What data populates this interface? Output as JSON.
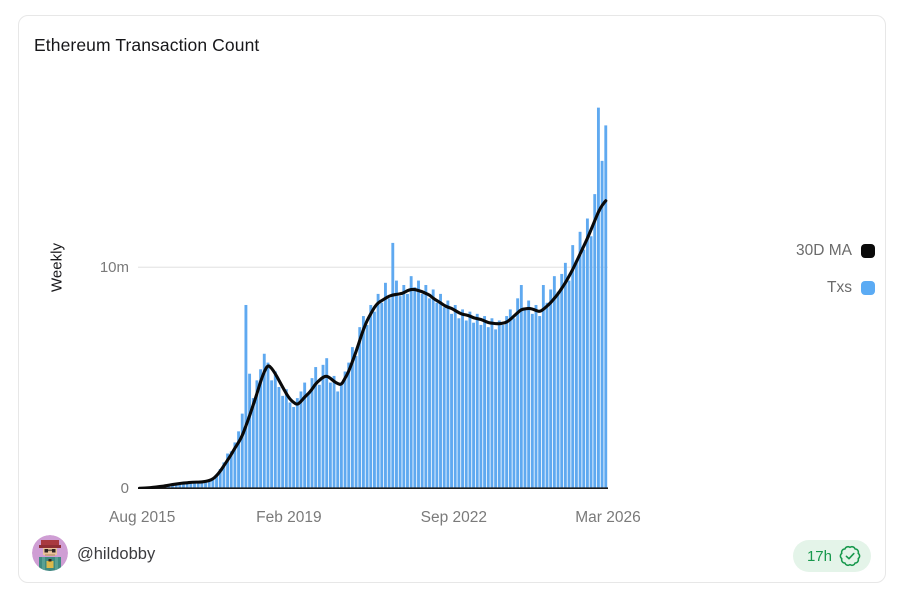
{
  "card": {
    "title": "Ethereum Transaction Count"
  },
  "legend": [
    {
      "label": "30D MA",
      "color": "#0a0a0a"
    },
    {
      "label": "Txs",
      "color": "#5babf4"
    }
  ],
  "footer": {
    "author_handle": "@hildobby",
    "age_badge": "17h",
    "badge_color": "#17984c",
    "badge_bg": "#e4f4e9"
  },
  "chart_data": {
    "type": "bar",
    "title": "Ethereum Transaction Count",
    "subtitle": "",
    "xlabel": "",
    "ylabel": "Weekly",
    "x_range": "Aug 2015 to Mar 2026, one value per month (weekly bars in source, values in millions of transactions)",
    "xticks": [
      "Aug 2015",
      "Feb 2019",
      "Sep 2022",
      "Mar 2026"
    ],
    "xtick_positions": [
      0.009,
      0.321,
      0.672,
      1.0
    ],
    "yticks": [
      "0",
      "10m"
    ],
    "ytick_values": [
      0,
      10
    ],
    "ylim": [
      0,
      17.5
    ],
    "gridline_at": 10,
    "grid": "horizontal line at 10m only",
    "legend_position": "right, outside plot",
    "bar_color": "#5fa9f0",
    "line_color": "#0a0a0a",
    "axis_line_color": "#1c1c1c",
    "series": [
      {
        "name": "Txs",
        "type": "bar",
        "values": [
          0.03,
          0.05,
          0.06,
          0.08,
          0.1,
          0.12,
          0.15,
          0.17,
          0.2,
          0.22,
          0.25,
          0.27,
          0.28,
          0.3,
          0.32,
          0.33,
          0.3,
          0.32,
          0.35,
          0.4,
          0.5,
          0.65,
          0.9,
          1.2,
          1.6,
          1.7,
          2.1,
          2.6,
          3.4,
          8.3,
          5.2,
          4.1,
          4.9,
          5.4,
          6.1,
          5.7,
          4.9,
          5.3,
          4.6,
          4.2,
          4.5,
          3.9,
          3.7,
          4.1,
          4.4,
          4.8,
          4.3,
          5.0,
          5.5,
          4.7,
          5.6,
          5.9,
          4.8,
          5.1,
          4.4,
          4.8,
          5.3,
          5.7,
          6.4,
          6.0,
          7.3,
          7.8,
          7.4,
          8.3,
          8.0,
          8.8,
          8.4,
          9.3,
          8.6,
          11.1,
          9.4,
          8.7,
          9.2,
          8.8,
          9.6,
          9.1,
          9.4,
          8.8,
          9.2,
          8.6,
          9.0,
          8.4,
          8.8,
          8.2,
          8.5,
          7.9,
          8.3,
          7.7,
          8.1,
          7.6,
          8.0,
          7.5,
          7.9,
          7.4,
          7.8,
          7.3,
          7.7,
          7.2,
          7.6,
          7.4,
          7.8,
          8.1,
          7.7,
          8.6,
          9.2,
          8.1,
          8.5,
          7.9,
          8.3,
          7.8,
          9.2,
          8.4,
          9.0,
          9.6,
          8.9,
          9.7,
          10.2,
          9.4,
          11.0,
          10.3,
          11.6,
          10.8,
          12.2,
          11.4,
          13.3,
          17.2,
          14.8,
          16.4
        ]
      },
      {
        "name": "30D MA",
        "type": "line",
        "values": [
          0.03,
          0.04,
          0.05,
          0.06,
          0.08,
          0.1,
          0.12,
          0.14,
          0.17,
          0.2,
          0.22,
          0.25,
          0.27,
          0.28,
          0.3,
          0.31,
          0.31,
          0.32,
          0.34,
          0.38,
          0.45,
          0.6,
          0.8,
          1.05,
          1.3,
          1.55,
          1.85,
          2.1,
          2.4,
          2.85,
          3.3,
          3.8,
          4.3,
          4.85,
          5.3,
          5.6,
          5.45,
          5.2,
          4.9,
          4.6,
          4.3,
          4.05,
          3.9,
          3.8,
          3.95,
          4.15,
          4.3,
          4.5,
          4.75,
          4.9,
          5.05,
          5.1,
          5.0,
          4.85,
          4.75,
          4.7,
          5.0,
          5.3,
          5.75,
          6.2,
          6.7,
          7.2,
          7.6,
          7.9,
          8.2,
          8.4,
          8.5,
          8.6,
          8.7,
          8.75,
          8.78,
          8.8,
          8.85,
          8.95,
          9.0,
          9.0,
          8.95,
          8.9,
          8.82,
          8.75,
          8.6,
          8.5,
          8.4,
          8.28,
          8.2,
          8.15,
          8.05,
          7.95,
          7.88,
          7.85,
          7.8,
          7.72,
          7.68,
          7.65,
          7.58,
          7.5,
          7.48,
          7.46,
          7.45,
          7.48,
          7.52,
          7.65,
          7.8,
          7.95,
          8.1,
          8.12,
          8.15,
          8.12,
          8.05,
          8.0,
          8.1,
          8.25,
          8.4,
          8.6,
          8.8,
          9.05,
          9.3,
          9.6,
          9.9,
          10.25,
          10.6,
          10.95,
          11.3,
          11.7,
          12.1,
          12.5,
          12.8,
          13.0
        ]
      }
    ]
  }
}
